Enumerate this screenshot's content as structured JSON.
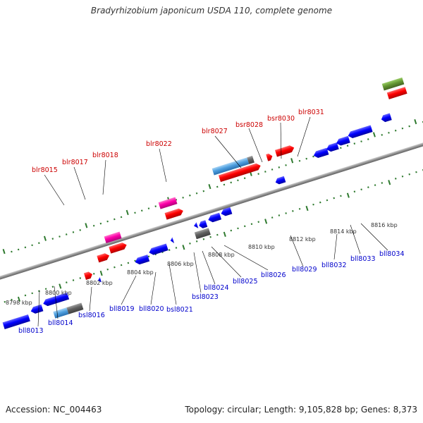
{
  "title": "Bradyrhizobium japonicum USDA 110, complete genome",
  "footer": {
    "accession": "Accession: NC_004463",
    "info": "Topology: circular; Length: 9,105,828 bp; Genes: 8,373"
  },
  "colors": {
    "backbone": "#909090",
    "forward_gene": "#ff0000",
    "reverse_gene": "#0000ff",
    "pink_gene": "#ff00aa",
    "gray_gene": "#606060",
    "rna_gene": "#4fa0e0",
    "green_gene": "#669933",
    "tick": "#2f7a2f",
    "fwd_label": "#cc0000",
    "rev_label": "#0000cc"
  },
  "scale_labels": [
    "8798 kbp",
    "8800 kbp",
    "8802 kbp",
    "8804 kbp",
    "8806 kbp",
    "8808 kbp",
    "8810 kbp",
    "8812 kbp",
    "8814 kbp",
    "8816 kbp"
  ],
  "forward_genes": [
    "blr8015",
    "blr8017",
    "blr8018",
    "blr8022",
    "blr8027",
    "bsr8028",
    "bsr8030",
    "blr8031"
  ],
  "reverse_genes": [
    "bll8013",
    "bll8014",
    "bsl8016",
    "bll8019",
    "bll8020",
    "bsl8021",
    "bsl8023",
    "bll8024",
    "bll8025",
    "bll8026",
    "bll8029",
    "bll8032",
    "bll8033",
    "bll8034"
  ]
}
